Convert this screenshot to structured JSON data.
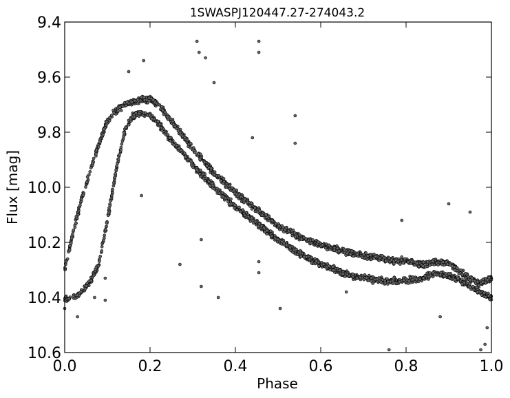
{
  "chart_data": {
    "type": "scatter",
    "title": "1SWASPJ120447.27-274043.2",
    "xlabel": "Phase",
    "ylabel": "Flux [mag]",
    "xlim": [
      0.0,
      1.0
    ],
    "ylim": [
      9.4,
      10.6
    ],
    "y_inverted": true,
    "grid": false,
    "legend": "none",
    "x_ticks": [
      "0.0",
      "0.2",
      "0.4",
      "0.6",
      "0.8",
      "1.0"
    ],
    "y_ticks": [
      "9.4",
      "9.6",
      "9.8",
      "10.0",
      "10.2",
      "10.4",
      "10.6"
    ],
    "marker_color": "#666666",
    "marker_edge_color": "#000000",
    "series": [
      {
        "name": "",
        "trend_upper": {
          "x": [
            0.0,
            0.02,
            0.04,
            0.06,
            0.08,
            0.1,
            0.12,
            0.14,
            0.16,
            0.18,
            0.2,
            0.22,
            0.24,
            0.26,
            0.28,
            0.3,
            0.35,
            0.4,
            0.45,
            0.5,
            0.55,
            0.6,
            0.65,
            0.7,
            0.75,
            0.8,
            0.84,
            0.87,
            0.9,
            0.94,
            0.97,
            1.0
          ],
          "y": [
            10.3,
            10.16,
            10.04,
            9.94,
            9.84,
            9.76,
            9.72,
            9.7,
            9.69,
            9.68,
            9.68,
            9.7,
            9.74,
            9.78,
            9.82,
            9.86,
            9.95,
            10.02,
            10.08,
            10.14,
            10.18,
            10.21,
            10.23,
            10.25,
            10.26,
            10.27,
            10.28,
            10.27,
            10.28,
            10.32,
            10.35,
            10.33
          ]
        },
        "trend_lower": {
          "x": [
            0.0,
            0.02,
            0.04,
            0.06,
            0.08,
            0.1,
            0.12,
            0.14,
            0.16,
            0.18,
            0.2,
            0.22,
            0.24,
            0.26,
            0.28,
            0.3,
            0.35,
            0.4,
            0.45,
            0.5,
            0.55,
            0.6,
            0.65,
            0.7,
            0.75,
            0.8,
            0.84,
            0.87,
            0.9,
            0.94,
            0.97,
            1.0
          ],
          "y": [
            10.41,
            10.4,
            10.38,
            10.34,
            10.28,
            10.12,
            9.94,
            9.8,
            9.74,
            9.73,
            9.74,
            9.77,
            9.81,
            9.85,
            9.88,
            9.92,
            10.0,
            10.07,
            10.13,
            10.19,
            10.24,
            10.28,
            10.31,
            10.33,
            10.34,
            10.34,
            10.33,
            10.31,
            10.32,
            10.35,
            10.38,
            10.4
          ]
        },
        "outliers": [
          [
            0.0,
            10.44
          ],
          [
            0.03,
            10.47
          ],
          [
            0.07,
            10.4
          ],
          [
            0.095,
            10.33
          ],
          [
            0.095,
            10.41
          ],
          [
            0.15,
            9.58
          ],
          [
            0.18,
            10.03
          ],
          [
            0.185,
            9.54
          ],
          [
            0.27,
            10.28
          ],
          [
            0.31,
            9.47
          ],
          [
            0.315,
            9.51
          ],
          [
            0.32,
            10.19
          ],
          [
            0.32,
            10.36
          ],
          [
            0.33,
            9.53
          ],
          [
            0.35,
            9.62
          ],
          [
            0.36,
            10.4
          ],
          [
            0.44,
            9.82
          ],
          [
            0.455,
            9.47
          ],
          [
            0.455,
            9.51
          ],
          [
            0.455,
            10.27
          ],
          [
            0.455,
            10.31
          ],
          [
            0.505,
            10.44
          ],
          [
            0.54,
            9.74
          ],
          [
            0.54,
            9.84
          ],
          [
            0.66,
            10.38
          ],
          [
            0.76,
            10.59
          ],
          [
            0.79,
            10.12
          ],
          [
            0.88,
            10.47
          ],
          [
            0.9,
            10.06
          ],
          [
            0.95,
            10.09
          ],
          [
            0.975,
            10.59
          ],
          [
            0.99,
            10.51
          ],
          [
            0.985,
            10.57
          ]
        ]
      }
    ]
  }
}
